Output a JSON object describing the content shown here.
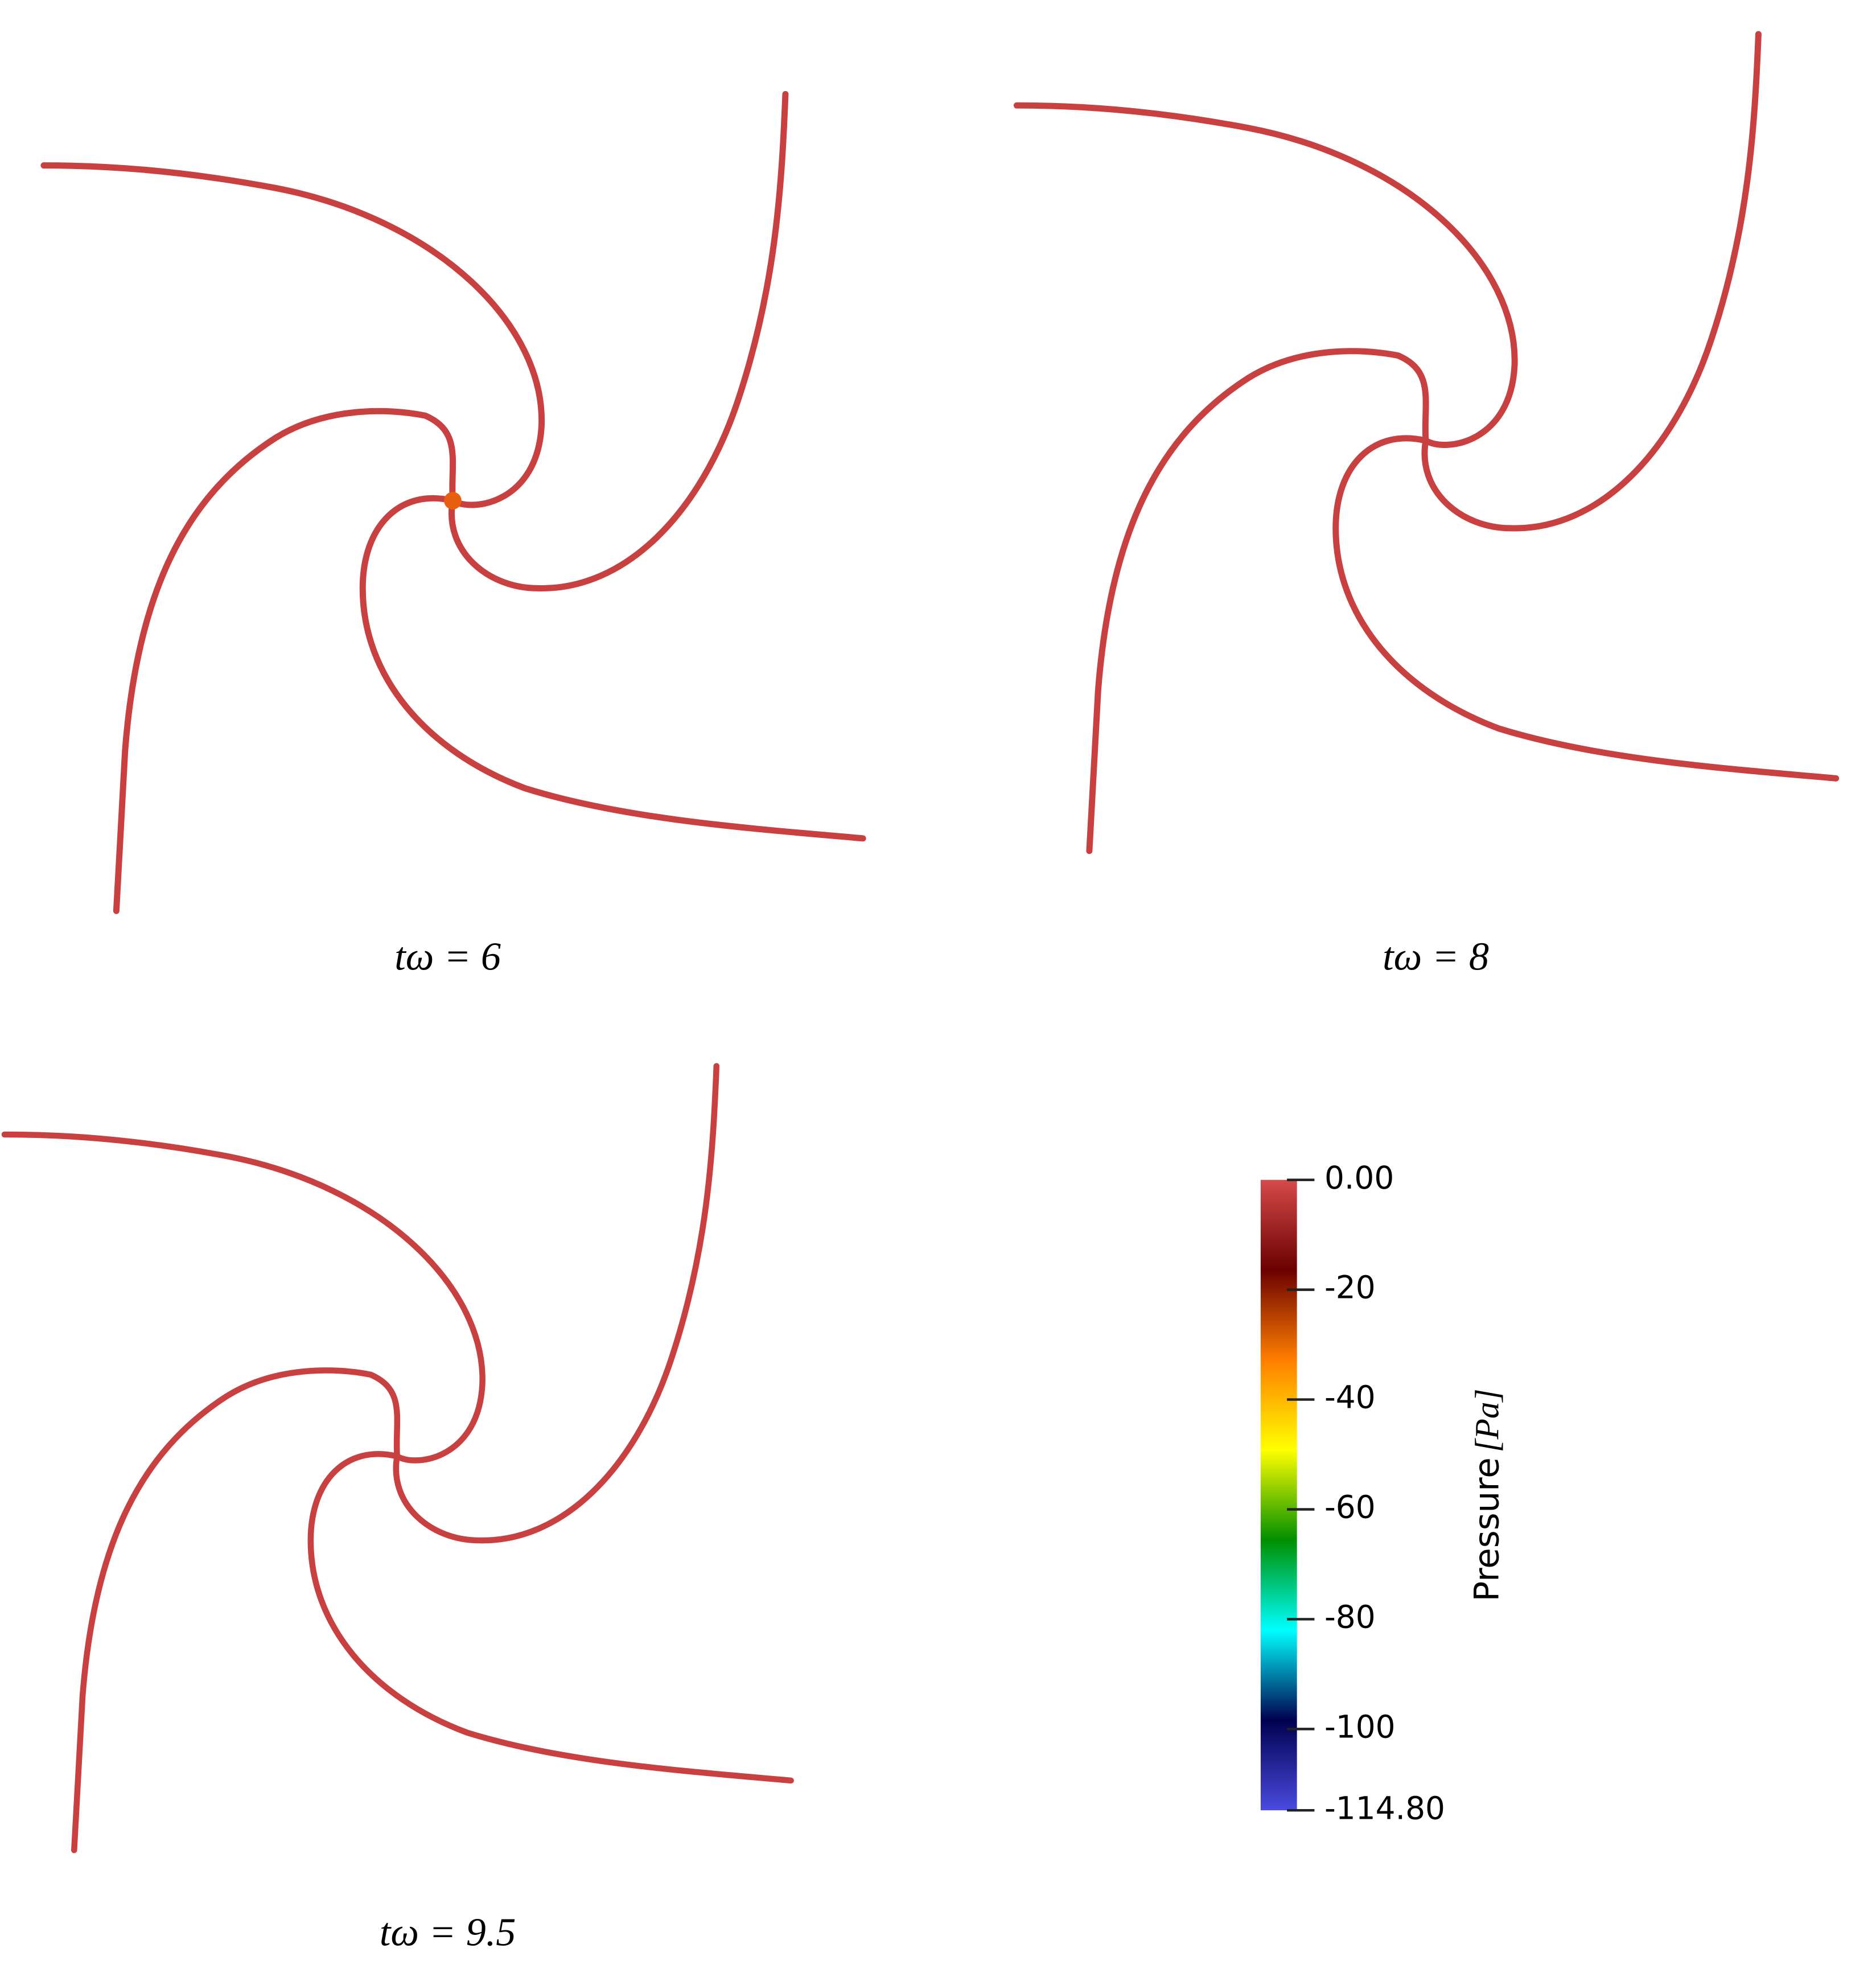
{
  "panels": [
    {
      "caption": "tω = 6"
    },
    {
      "caption": "tω = 8"
    },
    {
      "caption": "tω = 9.5"
    }
  ],
  "colorbar": {
    "title": "Pressure",
    "unit": "[Pa]",
    "lim": [
      0,
      -114.8
    ],
    "ticks": [
      {
        "value": 0,
        "label": "0.00"
      },
      -20,
      -40,
      -60,
      -80,
      -100,
      {
        "value": -114.8,
        "label": "-114.80"
      }
    ],
    "colormap": [
      "#d64a4a",
      "#6b0000",
      "#ff7f00",
      "#ffff00",
      "#008f00",
      "#00ffff",
      "#000050",
      "#4a4ae0"
    ]
  }
}
